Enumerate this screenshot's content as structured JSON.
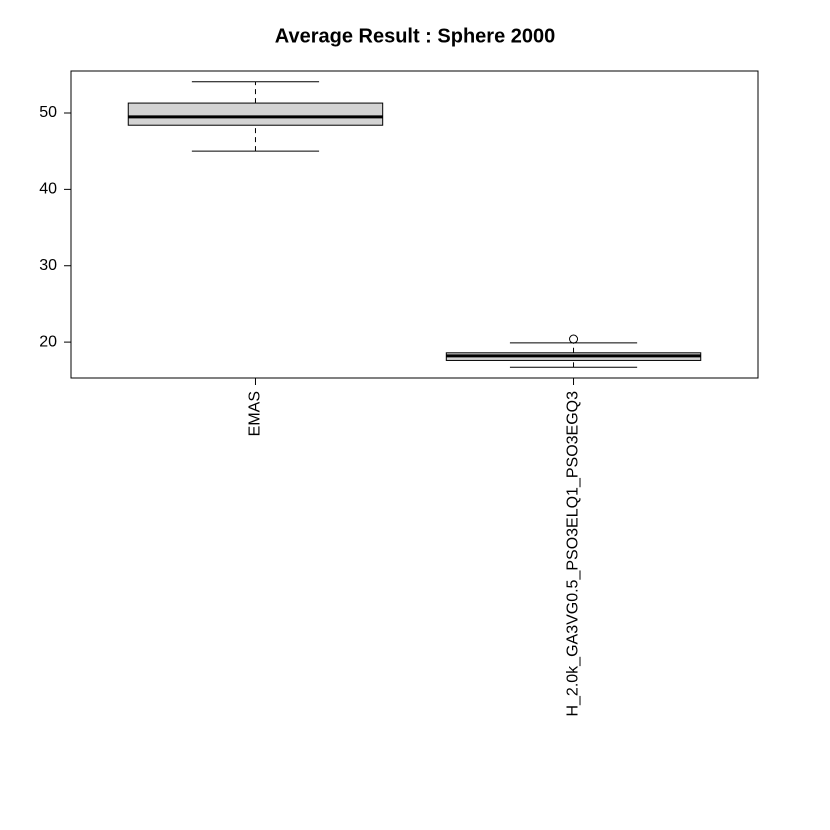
{
  "chart_data": {
    "type": "box",
    "title": "Average Result : Sphere 2000",
    "categories": [
      "EMAS",
      "H_2.0k_GA3VG0.5_PSO3ELQ1_PSO3EGQ3"
    ],
    "series": [
      {
        "min": 45.0,
        "q1": 48.4,
        "median": 49.5,
        "q3": 51.3,
        "max": 54.1,
        "outliers": []
      },
      {
        "min": 16.7,
        "q1": 17.6,
        "median": 18.2,
        "q3": 18.6,
        "max": 19.9,
        "outliers": [
          20.4
        ]
      }
    ],
    "color": "#d3d3d3",
    "ylim": [
      15.3,
      55.5
    ],
    "yticks": [
      20,
      30,
      40,
      50
    ]
  }
}
